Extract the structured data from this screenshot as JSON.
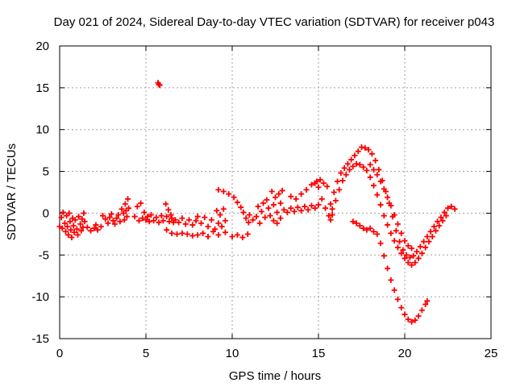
{
  "chart_data": {
    "type": "scatter",
    "title": "Day 021 of 2024, Sidereal Day-to-day VTEC variation (SDTVAR) for receiver p043",
    "xlabel": "GPS time / hours",
    "ylabel": "SDTVAR / TECUs",
    "xlim": [
      0,
      25
    ],
    "ylim": [
      -15,
      20
    ],
    "xticks": [
      0,
      5,
      10,
      15,
      20,
      25
    ],
    "yticks": [
      -15,
      -10,
      -5,
      0,
      5,
      10,
      15,
      20
    ],
    "xtick_labels": [
      "0",
      "5",
      "10",
      "15",
      "20",
      "25"
    ],
    "ytick_labels": [
      "-15",
      "-10",
      "-5",
      "0",
      "5",
      "10",
      "15",
      "20"
    ],
    "grid": true,
    "marker": "plus",
    "series": [
      {
        "name": "SDTVAR",
        "color": "#ff0000",
        "points": [
          [
            0.0,
            -1.6
          ],
          [
            0.1,
            -0.5
          ],
          [
            0.15,
            -1.8
          ],
          [
            0.2,
            0.1
          ],
          [
            0.3,
            -1.2
          ],
          [
            0.35,
            -2.2
          ],
          [
            0.4,
            -0.3
          ],
          [
            0.45,
            -1.6
          ],
          [
            0.5,
            -2.6
          ],
          [
            0.55,
            0.0
          ],
          [
            0.6,
            -1.0
          ],
          [
            0.65,
            -2.0
          ],
          [
            0.7,
            -2.9
          ],
          [
            0.75,
            -0.6
          ],
          [
            0.8,
            -1.5
          ],
          [
            0.85,
            -2.3
          ],
          [
            0.9,
            -0.8
          ],
          [
            1.0,
            -1.9
          ],
          [
            1.05,
            -2.6
          ],
          [
            1.1,
            -0.4
          ],
          [
            1.2,
            -1.3
          ],
          [
            1.25,
            -2.1
          ],
          [
            1.3,
            -0.7
          ],
          [
            1.35,
            -1.7
          ],
          [
            1.4,
            0.0
          ],
          [
            1.45,
            -1.0
          ],
          [
            1.6,
            -1.7
          ],
          [
            1.8,
            -2.1
          ],
          [
            2.0,
            -1.8
          ],
          [
            2.1,
            -1.4
          ],
          [
            2.2,
            -2.0
          ],
          [
            2.4,
            -1.6
          ],
          [
            2.5,
            -0.3
          ],
          [
            2.65,
            -0.7
          ],
          [
            2.8,
            -1.2
          ],
          [
            2.9,
            -0.5
          ],
          [
            3.0,
            -0.1
          ],
          [
            3.1,
            -0.9
          ],
          [
            3.2,
            -1.3
          ],
          [
            3.3,
            -0.6
          ],
          [
            3.4,
            -0.2
          ],
          [
            3.5,
            -1.0
          ],
          [
            3.6,
            0.5
          ],
          [
            3.7,
            0.0
          ],
          [
            3.75,
            -0.8
          ],
          [
            3.8,
            1.1
          ],
          [
            3.85,
            0.3
          ],
          [
            3.9,
            -0.4
          ],
          [
            3.95,
            1.7
          ],
          [
            4.0,
            0.6
          ],
          [
            4.35,
            -0.4
          ],
          [
            4.5,
            0.8
          ],
          [
            4.6,
            -0.9
          ],
          [
            4.7,
            1.2
          ],
          [
            4.8,
            -0.6
          ],
          [
            4.9,
            0.1
          ],
          [
            5.0,
            -0.8
          ],
          [
            5.1,
            -0.4
          ],
          [
            5.2,
            -1.0
          ],
          [
            5.3,
            -0.2
          ],
          [
            5.45,
            -0.9
          ],
          [
            5.6,
            -0.5
          ],
          [
            5.75,
            -1.1
          ],
          [
            5.9,
            -0.3
          ],
          [
            5.7,
            15.6
          ],
          [
            5.75,
            15.4
          ],
          [
            5.8,
            15.3
          ],
          [
            6.0,
            -0.9
          ],
          [
            6.2,
            -0.4
          ],
          [
            6.35,
            -1.0
          ],
          [
            6.5,
            -0.6
          ],
          [
            6.6,
            -1.1
          ],
          [
            6.7,
            -0.8
          ],
          [
            6.15,
            1.1
          ],
          [
            6.3,
            0.4
          ],
          [
            6.45,
            -0.2
          ],
          [
            6.2,
            -2.0
          ],
          [
            6.5,
            -2.4
          ],
          [
            6.8,
            -2.5
          ],
          [
            7.1,
            -2.4
          ],
          [
            7.4,
            -2.5
          ],
          [
            7.7,
            -2.7
          ],
          [
            8.0,
            -2.6
          ],
          [
            8.3,
            -2.4
          ],
          [
            8.6,
            -2.8
          ],
          [
            6.9,
            -1.1
          ],
          [
            7.1,
            -0.6
          ],
          [
            7.3,
            -1.3
          ],
          [
            7.5,
            -0.8
          ],
          [
            7.7,
            -1.4
          ],
          [
            7.9,
            -0.9
          ],
          [
            8.0,
            -0.4
          ],
          [
            8.2,
            -1.2
          ],
          [
            8.4,
            -0.5
          ],
          [
            8.6,
            -1.6
          ],
          [
            8.8,
            -0.8
          ],
          [
            9.0,
            -1.9
          ],
          [
            9.2,
            -1.2
          ],
          [
            9.4,
            -1.6
          ],
          [
            9.6,
            -0.9
          ],
          [
            8.9,
            -2.2
          ],
          [
            9.2,
            -2.6
          ],
          [
            9.6,
            -2.3
          ],
          [
            10.0,
            -2.8
          ],
          [
            10.3,
            -2.6
          ],
          [
            10.6,
            -2.9
          ],
          [
            10.9,
            -2.5
          ],
          [
            9.2,
            2.8
          ],
          [
            9.5,
            2.6
          ],
          [
            9.8,
            2.3
          ],
          [
            10.1,
            1.9
          ],
          [
            10.3,
            1.3
          ],
          [
            10.5,
            0.7
          ],
          [
            10.65,
            0.1
          ],
          [
            10.8,
            -0.6
          ],
          [
            10.95,
            -1.1
          ],
          [
            9.1,
            0.3
          ],
          [
            9.3,
            -0.2
          ],
          [
            9.5,
            0.5
          ],
          [
            11.0,
            -0.2
          ],
          [
            11.2,
            -0.8
          ],
          [
            11.4,
            -0.4
          ],
          [
            11.5,
            0.8
          ],
          [
            11.6,
            -1.2
          ],
          [
            11.7,
            0.2
          ],
          [
            11.8,
            1.2
          ],
          [
            11.9,
            -0.5
          ],
          [
            12.0,
            1.6
          ],
          [
            12.1,
            0.6
          ],
          [
            12.2,
            -0.3
          ],
          [
            12.3,
            2.6
          ],
          [
            12.4,
            1.0
          ],
          [
            12.5,
            1.9
          ],
          [
            12.6,
            0.1
          ],
          [
            12.7,
            2.3
          ],
          [
            12.8,
            1.2
          ],
          [
            12.9,
            2.7
          ],
          [
            12.4,
            -0.9
          ],
          [
            12.6,
            -1.2
          ],
          [
            12.8,
            -0.6
          ],
          [
            13.0,
            0.4
          ],
          [
            13.2,
            0.1
          ],
          [
            13.4,
            0.6
          ],
          [
            13.6,
            0.2
          ],
          [
            13.8,
            0.7
          ],
          [
            14.0,
            0.3
          ],
          [
            14.2,
            0.8
          ],
          [
            14.4,
            0.4
          ],
          [
            14.6,
            0.9
          ],
          [
            14.8,
            0.6
          ],
          [
            15.0,
            1.0
          ],
          [
            13.4,
            2.0
          ],
          [
            13.7,
            1.7
          ],
          [
            14.0,
            2.3
          ],
          [
            14.3,
            2.8
          ],
          [
            14.6,
            3.4
          ],
          [
            14.8,
            3.6
          ],
          [
            15.0,
            3.1
          ],
          [
            15.2,
            1.7
          ],
          [
            15.4,
            0.6
          ],
          [
            15.6,
            -0.3
          ],
          [
            15.7,
            -0.8
          ],
          [
            15.8,
            -0.2
          ],
          [
            14.9,
            3.8
          ],
          [
            15.1,
            4.0
          ],
          [
            15.3,
            3.6
          ],
          [
            15.5,
            3.2
          ],
          [
            15.7,
            1.1
          ],
          [
            15.9,
            2.5
          ],
          [
            16.1,
            3.8
          ],
          [
            16.3,
            4.8
          ],
          [
            16.5,
            5.4
          ],
          [
            16.7,
            5.9
          ],
          [
            16.9,
            6.4
          ],
          [
            17.1,
            6.9
          ],
          [
            17.3,
            7.4
          ],
          [
            17.5,
            7.9
          ],
          [
            17.7,
            7.8
          ],
          [
            17.9,
            7.6
          ],
          [
            18.1,
            7.1
          ],
          [
            18.3,
            6.3
          ],
          [
            18.5,
            5.2
          ],
          [
            18.7,
            3.9
          ],
          [
            18.9,
            2.6
          ],
          [
            19.1,
            1.2
          ],
          [
            19.3,
            -0.4
          ],
          [
            19.5,
            -2.1
          ],
          [
            19.7,
            -3.4
          ],
          [
            19.9,
            -4.4
          ],
          [
            20.1,
            -5.0
          ],
          [
            20.3,
            -5.3
          ],
          [
            20.5,
            -5.1
          ],
          [
            20.7,
            -4.6
          ],
          [
            20.9,
            -4.0
          ],
          [
            21.1,
            -3.4
          ],
          [
            21.3,
            -2.8
          ],
          [
            21.5,
            -2.2
          ],
          [
            21.7,
            -1.6
          ],
          [
            21.9,
            -1.0
          ],
          [
            22.1,
            -0.5
          ],
          [
            22.3,
            0.1
          ],
          [
            22.5,
            0.6
          ],
          [
            22.7,
            0.8
          ],
          [
            22.9,
            0.5
          ],
          [
            15.8,
            0.5
          ],
          [
            16.0,
            1.5
          ],
          [
            16.2,
            2.8
          ],
          [
            16.4,
            3.9
          ],
          [
            16.6,
            4.6
          ],
          [
            16.8,
            5.2
          ],
          [
            17.0,
            5.6
          ],
          [
            17.2,
            5.9
          ],
          [
            17.4,
            5.8
          ],
          [
            17.6,
            5.5
          ],
          [
            17.8,
            5.1
          ],
          [
            18.0,
            4.3
          ],
          [
            18.2,
            3.3
          ],
          [
            18.4,
            2.2
          ],
          [
            18.6,
            1.0
          ],
          [
            18.8,
            -0.3
          ],
          [
            19.0,
            -1.4
          ],
          [
            19.2,
            -2.4
          ],
          [
            19.4,
            -3.3
          ],
          [
            19.6,
            -4.1
          ],
          [
            19.8,
            -4.8
          ],
          [
            20.0,
            -5.4
          ],
          [
            20.2,
            -5.9
          ],
          [
            20.4,
            -6.2
          ],
          [
            20.6,
            -5.9
          ],
          [
            20.8,
            -5.4
          ],
          [
            21.0,
            -4.8
          ],
          [
            21.2,
            -4.1
          ],
          [
            21.4,
            -3.4
          ],
          [
            21.6,
            -2.8
          ],
          [
            21.8,
            -2.1
          ],
          [
            22.0,
            -1.5
          ],
          [
            22.2,
            -0.9
          ],
          [
            22.4,
            -0.3
          ],
          [
            18.0,
            5.8
          ],
          [
            18.2,
            5.2
          ],
          [
            18.4,
            4.6
          ],
          [
            18.6,
            3.8
          ],
          [
            18.8,
            2.9
          ],
          [
            19.0,
            1.9
          ],
          [
            19.2,
            0.9
          ],
          [
            19.4,
            -0.2
          ],
          [
            19.6,
            -1.3
          ],
          [
            19.8,
            -2.4
          ],
          [
            20.0,
            -3.3
          ],
          [
            20.2,
            -3.9
          ],
          [
            20.4,
            -4.2
          ],
          [
            17.0,
            -1.0
          ],
          [
            17.2,
            -1.2
          ],
          [
            17.4,
            -1.5
          ],
          [
            17.6,
            -1.8
          ],
          [
            17.8,
            -2.0
          ],
          [
            18.0,
            -1.8
          ],
          [
            18.2,
            -2.2
          ],
          [
            18.4,
            -2.5
          ],
          [
            18.6,
            -3.6
          ],
          [
            18.8,
            -5.1
          ],
          [
            19.0,
            -6.6
          ],
          [
            19.2,
            -8.0
          ],
          [
            19.4,
            -9.2
          ],
          [
            19.6,
            -10.3
          ],
          [
            19.8,
            -11.3
          ],
          [
            20.0,
            -12.1
          ],
          [
            20.2,
            -12.7
          ],
          [
            20.4,
            -13.0
          ],
          [
            20.6,
            -12.8
          ],
          [
            20.8,
            -12.3
          ],
          [
            21.0,
            -11.6
          ],
          [
            21.2,
            -10.9
          ],
          [
            21.3,
            -10.5
          ]
        ]
      }
    ]
  }
}
